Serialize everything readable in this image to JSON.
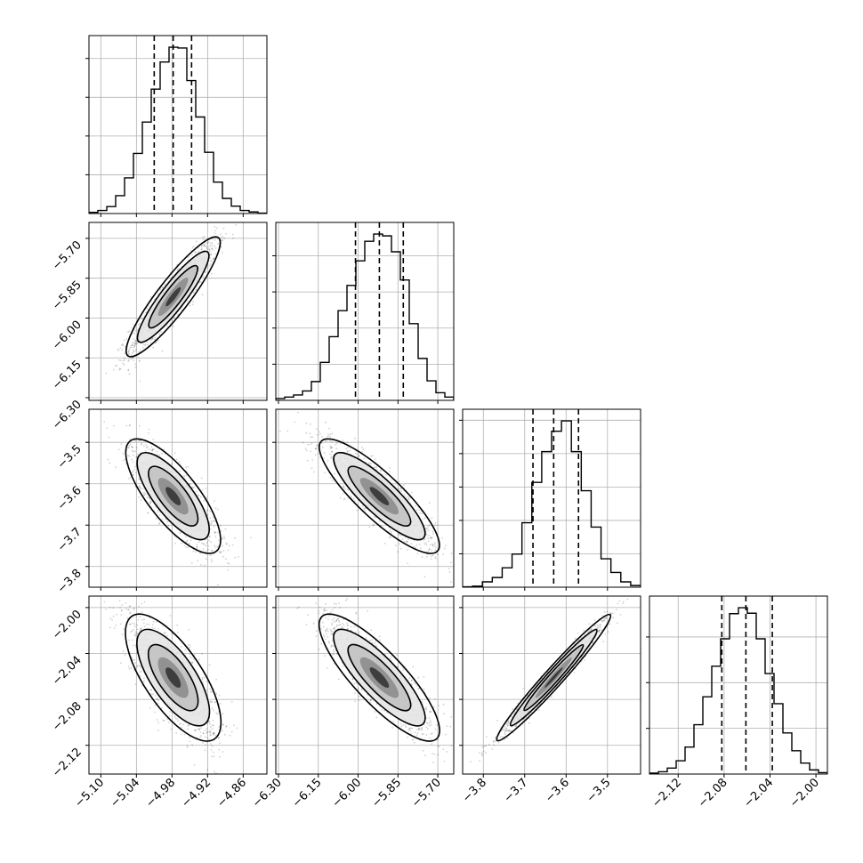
{
  "chart_data": {
    "type": "corner",
    "grid": true,
    "parameters": [
      {
        "ticks": [
          -5.1,
          -5.04,
          -4.98,
          -4.92,
          -4.86
        ],
        "tick_labels": [
          "−5.10",
          "−5.04",
          "−4.98",
          "−4.92",
          "−4.86"
        ],
        "range": [
          -5.12,
          -4.82
        ],
        "quantiles": [
          -5.01,
          -4.978,
          -4.947
        ],
        "hist_counts": [
          0.3,
          0.8,
          1.8,
          4.6,
          9.2,
          15.5,
          23.6,
          32.1,
          39.1,
          42.9,
          42.7,
          34.3,
          24.9,
          15.8,
          8.1,
          3.9,
          1.9,
          0.8,
          0.4,
          0.1
        ]
      },
      {
        "ticks": [
          -6.3,
          -6.15,
          -6.0,
          -5.85,
          -5.7
        ],
        "tick_labels": [
          "−6.30",
          "−6.15",
          "−6.00",
          "−5.85",
          "−5.70"
        ],
        "range": [
          -6.31,
          -5.64
        ],
        "quantiles": [
          -6.01,
          -5.92,
          -5.83
        ],
        "hist_counts": [
          0.5,
          0.9,
          1.5,
          2.6,
          5.2,
          10.5,
          17.6,
          24.8,
          31.8,
          38.6,
          44.0,
          46.0,
          45.5,
          41.1,
          33.3,
          21.2,
          11.6,
          5.4,
          2.1,
          0.9
        ]
      },
      {
        "ticks": [
          -3.8,
          -3.7,
          -3.6,
          -3.5
        ],
        "tick_labels": [
          "−3.8",
          "−3.7",
          "−3.6",
          "−3.5"
        ],
        "range": [
          -3.85,
          -3.42
        ],
        "quantiles": [
          -3.68,
          -3.63,
          -3.57
        ],
        "hist_counts": [
          0.1,
          0.3,
          1.6,
          2.9,
          5.8,
          9.9,
          19.3,
          31.4,
          40.6,
          46.7,
          49.8,
          40.6,
          28.9,
          18.0,
          8.5,
          4.4,
          1.6,
          0.5
        ]
      },
      {
        "ticks": [
          -2.12,
          -2.08,
          -2.04,
          -2.0
        ],
        "tick_labels": [
          "−2.12",
          "−2.08",
          "−2.04",
          "−2.00"
        ],
        "range": [
          -2.145,
          -1.99
        ],
        "quantiles": [
          -2.082,
          -2.061,
          -2.038
        ],
        "hist_counts": [
          0.2,
          0.5,
          1.3,
          2.9,
          5.9,
          10.8,
          16.9,
          23.6,
          29.6,
          35.1,
          36.4,
          35.2,
          29.6,
          22.0,
          15.4,
          9.0,
          5.1,
          2.4,
          0.9,
          0.3
        ]
      }
    ],
    "correlations": [
      [
        1.0,
        0.92,
        -0.8,
        -0.75
      ],
      [
        0.92,
        1.0,
        -0.88,
        -0.86
      ],
      [
        -0.8,
        -0.88,
        1.0,
        0.98
      ],
      [
        -0.75,
        -0.86,
        0.98,
        1.0
      ]
    ],
    "colors": {
      "frame": "#000000",
      "grid": "#b0b0b0",
      "scatter": "#000000",
      "density": "#000000"
    }
  }
}
